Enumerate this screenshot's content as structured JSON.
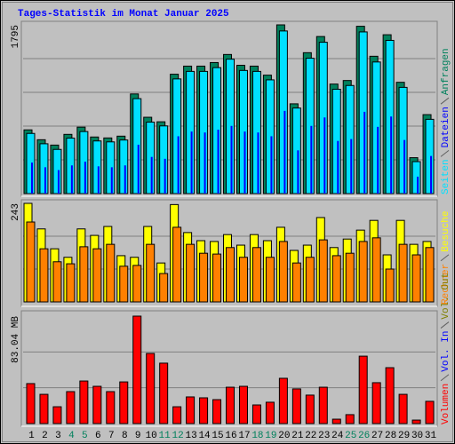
{
  "title": "Tages-Statistik im Monat Januar 2025",
  "chart_data": [
    {
      "type": "bar",
      "ylim": [
        0,
        1795
      ],
      "yticks": [
        1795
      ],
      "grid_divisions": 5,
      "series": [
        {
          "name": "Anfragen",
          "color": "#00805C",
          "values": [
            678,
            573,
            516,
            630,
            707,
            602,
            592,
            611,
            1060,
            812,
            764,
            1270,
            1356,
            1356,
            1394,
            1480,
            1365,
            1356,
            1260,
            1795,
            955,
            1499,
            1671,
            1165,
            1203,
            1780,
            1461,
            1690,
            1184,
            382,
            840
          ]
        },
        {
          "name": "Dateien",
          "color": "#0000FF",
          "values": [
            330,
            280,
            250,
            300,
            340,
            290,
            280,
            300,
            520,
            390,
            370,
            610,
            660,
            650,
            680,
            720,
            660,
            650,
            610,
            880,
            460,
            720,
            810,
            560,
            580,
            870,
            710,
            820,
            570,
            180,
            400
          ]
        },
        {
          "name": "Seiten",
          "color": "#00E0FF",
          "values": [
            640,
            530,
            470,
            590,
            660,
            560,
            550,
            570,
            1010,
            760,
            720,
            1220,
            1300,
            1300,
            1340,
            1430,
            1310,
            1300,
            1210,
            1730,
            910,
            1440,
            1610,
            1110,
            1150,
            1720,
            1400,
            1630,
            1130,
            340,
            790
          ]
        }
      ]
    },
    {
      "type": "bar",
      "ylim": [
        0,
        243
      ],
      "yticks": [
        243
      ],
      "grid_divisions": 3,
      "series": [
        {
          "name": "Besuche",
          "color": "#FFFF00",
          "values": [
            243,
            180,
            131,
            110,
            180,
            164,
            186,
            114,
            110,
            186,
            96,
            240,
            171,
            151,
            149,
            166,
            140,
            166,
            151,
            184,
            127,
            140,
            208,
            134,
            155,
            177,
            201,
            116,
            201,
            142,
            149
          ]
        },
        {
          "name": "Rechner",
          "color": "#FF8000",
          "values": [
            197,
            131,
            99,
            94,
            136,
            131,
            142,
            88,
            90,
            142,
            70,
            184,
            142,
            120,
            118,
            134,
            110,
            134,
            110,
            149,
            96,
            110,
            153,
            114,
            120,
            149,
            158,
            81,
            142,
            116,
            134
          ]
        }
      ]
    },
    {
      "type": "bar",
      "ylim": [
        0,
        83.04
      ],
      "yticks": [
        {
          "value": 83.04,
          "label": "83.04 MB"
        }
      ],
      "grid_divisions": 3,
      "series": [
        {
          "name": "Volumen",
          "color": "#FF0000",
          "values": [
            30.9,
            22.6,
            13.0,
            24.7,
            32.9,
            28.8,
            24.7,
            32.2,
            83.04,
            54.2,
            46.7,
            13.0,
            20.6,
            19.9,
            18.5,
            28.1,
            28.8,
            14.4,
            16.5,
            35.0,
            26.8,
            22.0,
            28.1,
            3.4,
            6.9,
            52.1,
            31.6,
            43.2,
            22.6,
            2.7,
            17.2
          ]
        }
      ],
      "legend_extra": [
        {
          "name": "Vol. In",
          "color": "#0000FF"
        },
        {
          "name": "Vol. Out",
          "color": "#808000"
        }
      ],
      "categories": [
        "1",
        "2",
        "3",
        "4",
        "5",
        "6",
        "7",
        "8",
        "9",
        "10",
        "11",
        "12",
        "13",
        "14",
        "15",
        "16",
        "17",
        "18",
        "19",
        "20",
        "21",
        "22",
        "23",
        "24",
        "25",
        "26",
        "27",
        "28",
        "29",
        "30",
        "31"
      ],
      "category_color": "#000000",
      "highlight_categories": [
        3,
        4,
        10,
        11,
        17,
        18,
        24,
        25
      ],
      "highlight_color": "#00805C"
    }
  ]
}
